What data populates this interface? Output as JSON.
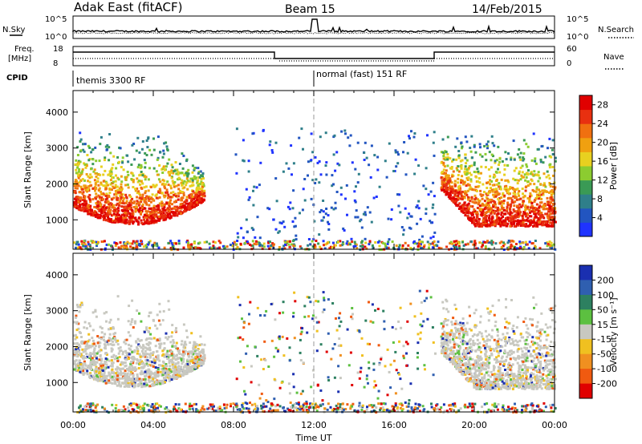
{
  "header": {
    "station": "Adak East (fitACF)",
    "beam": "Beam 15",
    "date": "14/Feb/2015"
  },
  "top_panels": {
    "nsky_label": "N.Sky",
    "nsearch_label": "N.Search",
    "noise_ticks_left": [
      "10^5",
      "10^0"
    ],
    "noise_ticks_right": [
      "10^5",
      "10^0"
    ],
    "freq_label_1": "Freq.",
    "freq_label_2": "[MHz]",
    "freq_ticks": [
      "18",
      "8"
    ],
    "nave_label": "Nave",
    "nave_ticks": [
      "60",
      "0"
    ],
    "cpid_label": "CPID",
    "cpid_entries": [
      {
        "label": "themis 3300 RF",
        "start_hour": 0
      },
      {
        "label": "normal (fast) 151 RF",
        "start_hour": 12
      }
    ]
  },
  "chart_data": [
    {
      "type": "heatmap",
      "name": "power",
      "x_label": "Time UT",
      "y_label": "Slant Range [km]",
      "x_ticks": [
        "00:00",
        "04:00",
        "08:00",
        "12:00",
        "16:00",
        "20:00",
        "00:00"
      ],
      "xlim_hours": [
        0,
        24
      ],
      "y_ticks": [
        1000,
        2000,
        3000,
        4000
      ],
      "ylim_km": [
        180,
        4600
      ],
      "colorbar_label": "Power [dB]",
      "colorbar_ticks": [
        4,
        8,
        12,
        16,
        20,
        24,
        28
      ],
      "colorbar_range": [
        0,
        30
      ],
      "colorbar_colors": [
        "#1f33ff",
        "#2255c0",
        "#2f7f8a",
        "#3a9a55",
        "#8ccc30",
        "#e8d020",
        "#f0a010",
        "#f07010",
        "#e83010",
        "#e00000"
      ]
    },
    {
      "type": "heatmap",
      "name": "velocity",
      "x_label": "Time UT",
      "y_label": "Slant Range [km]",
      "x_ticks": [
        "00:00",
        "04:00",
        "08:00",
        "12:00",
        "16:00",
        "20:00",
        "00:00"
      ],
      "xlim_hours": [
        0,
        24
      ],
      "y_ticks": [
        1000,
        2000,
        3000,
        4000
      ],
      "ylim_km": [
        180,
        4600
      ],
      "colorbar_label": "Velocity [m s⁻¹]",
      "colorbar_ticks": [
        "200",
        "100",
        "50",
        "15",
        "-15",
        "-50",
        "-100",
        "-200"
      ],
      "colorbar_colors": [
        "#1a2fb0",
        "#2f5fb0",
        "#2d8060",
        "#5cc040",
        "#c8c8c0",
        "#f0c020",
        "#f09020",
        "#f05a10",
        "#e00000"
      ]
    }
  ]
}
